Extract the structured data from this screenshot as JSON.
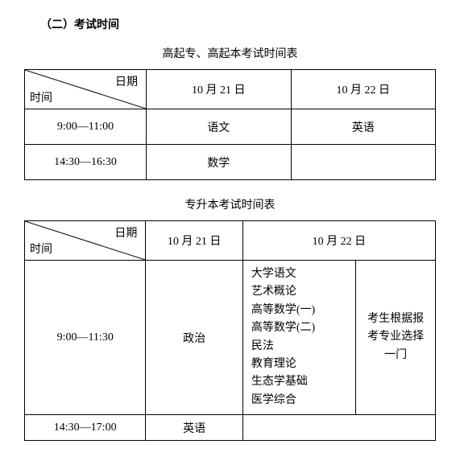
{
  "section_title": "（二）考试时间",
  "table1": {
    "caption": "高起专、高起本考试时间表",
    "header": {
      "top_label": "日期",
      "bottom_label": "时间",
      "col1": "10 月 21 日",
      "col2": "10 月 22 日"
    },
    "rows": [
      {
        "time": "9:00—11:00",
        "c1": "语文",
        "c2": "英语"
      },
      {
        "time": "14:30—16:30",
        "c1": "数学",
        "c2": ""
      }
    ]
  },
  "table2": {
    "caption": "专升本考试时间表",
    "header": {
      "top_label": "日期",
      "bottom_label": "时间",
      "col1": "10 月 21 日",
      "col2": "10 月 22 日"
    },
    "rows": [
      {
        "time": "9:00—11:30",
        "c1": "政治",
        "subjects": [
          "大学语文",
          "艺术概论",
          "高等数学(一)",
          "高等数学(二)",
          "民法",
          "教育理论",
          "生态学基础",
          "医学综合"
        ],
        "note_lines": [
          "考生根据报",
          "考专业选择",
          "一门"
        ]
      },
      {
        "time": "14:30—17:00",
        "c1": "英语"
      }
    ]
  }
}
